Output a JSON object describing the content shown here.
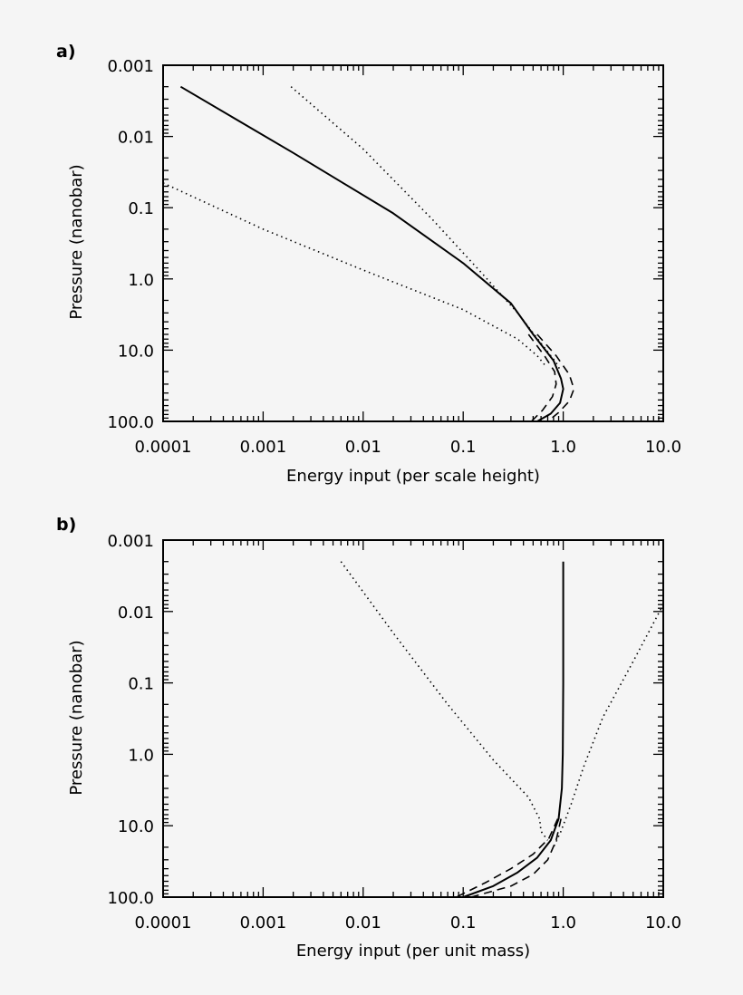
{
  "chart_data": [
    {
      "panel_label": "a)",
      "type": "line",
      "xlabel": "Energy input (per scale height)",
      "ylabel": "Pressure (nanobar)",
      "xscale": "log",
      "yscale": "log",
      "y_inverted": true,
      "xlim": [
        0.0001,
        10.0
      ],
      "ylim": [
        0.001,
        100.0
      ],
      "x_ticks": [
        "0.0001",
        "0.001",
        "0.01",
        "0.1",
        "1.0",
        "10.0"
      ],
      "y_ticks": [
        "0.001",
        "0.01",
        "0.1",
        "1.0",
        "10.0",
        "100.0"
      ],
      "series": [
        {
          "style": "solid",
          "points": [
            [
              0.00015,
              0.002
            ],
            [
              0.002,
              0.017
            ],
            [
              0.02,
              0.12
            ],
            [
              0.1,
              0.6
            ],
            [
              0.3,
              2.2
            ],
            [
              0.5,
              6
            ],
            [
              0.8,
              14
            ],
            [
              0.95,
              25
            ],
            [
              1.0,
              35
            ],
            [
              0.93,
              55
            ],
            [
              0.75,
              78
            ],
            [
              0.55,
              100
            ]
          ]
        },
        {
          "style": "dashed",
          "points": [
            [
              0.45,
              6
            ],
            [
              0.65,
              12
            ],
            [
              0.82,
              20
            ],
            [
              0.85,
              30
            ],
            [
              0.78,
              45
            ],
            [
              0.62,
              70
            ],
            [
              0.48,
              100
            ]
          ]
        },
        {
          "style": "dashed",
          "points": [
            [
              0.55,
              6
            ],
            [
              0.85,
              12
            ],
            [
              1.15,
              22
            ],
            [
              1.28,
              35
            ],
            [
              1.15,
              52
            ],
            [
              0.9,
              75
            ],
            [
              0.7,
              100
            ]
          ]
        },
        {
          "style": "dotted",
          "points": [
            [
              0.0019,
              0.002
            ],
            [
              0.01,
              0.015
            ],
            [
              0.05,
              0.15
            ],
            [
              0.15,
              0.8
            ],
            [
              0.35,
              3
            ],
            [
              0.6,
              8
            ],
            [
              0.85,
              15
            ],
            [
              0.95,
              20
            ]
          ]
        },
        {
          "style": "dotted",
          "points": [
            [
              0.0001,
              0.045
            ],
            [
              0.001,
              0.2
            ],
            [
              0.01,
              0.75
            ],
            [
              0.1,
              2.7
            ],
            [
              0.35,
              7
            ],
            [
              0.55,
              12
            ],
            [
              0.65,
              16
            ]
          ]
        }
      ]
    },
    {
      "panel_label": "b)",
      "type": "line",
      "xlabel": "Energy input (per unit mass)",
      "ylabel": "Pressure (nanobar)",
      "xscale": "log",
      "yscale": "log",
      "y_inverted": true,
      "xlim": [
        0.0001,
        10.0
      ],
      "ylim": [
        0.001,
        100.0
      ],
      "x_ticks": [
        "0.0001",
        "0.001",
        "0.01",
        "0.1",
        "1.0",
        "10.0"
      ],
      "y_ticks": [
        "0.001",
        "0.01",
        "0.1",
        "1.0",
        "10.0",
        "100.0"
      ],
      "series": [
        {
          "style": "solid",
          "points": [
            [
              1.0,
              0.002
            ],
            [
              1.0,
              0.1
            ],
            [
              0.99,
              1
            ],
            [
              0.97,
              3
            ],
            [
              0.9,
              8
            ],
            [
              0.75,
              16
            ],
            [
              0.55,
              28
            ],
            [
              0.35,
              45
            ],
            [
              0.2,
              70
            ],
            [
              0.1,
              100
            ]
          ]
        },
        {
          "style": "dashed",
          "points": [
            [
              0.88,
              8
            ],
            [
              0.72,
              15
            ],
            [
              0.5,
              25
            ],
            [
              0.3,
              40
            ],
            [
              0.17,
              62
            ],
            [
              0.085,
              100
            ]
          ]
        },
        {
          "style": "dashed",
          "points": [
            [
              0.95,
              8
            ],
            [
              0.85,
              16
            ],
            [
              0.7,
              30
            ],
            [
              0.5,
              48
            ],
            [
              0.3,
              70
            ],
            [
              0.12,
              100
            ]
          ]
        },
        {
          "style": "dotted",
          "points": [
            [
              0.006,
              0.002
            ],
            [
              0.02,
              0.02
            ],
            [
              0.07,
              0.2
            ],
            [
              0.2,
              1.2
            ],
            [
              0.45,
              4
            ],
            [
              0.58,
              8
            ],
            [
              0.6,
              12
            ],
            [
              0.7,
              16
            ]
          ]
        },
        {
          "style": "dotted",
          "points": [
            [
              10.0,
              0.008
            ],
            [
              5.0,
              0.05
            ],
            [
              2.5,
              0.3
            ],
            [
              1.6,
              1.5
            ],
            [
              1.2,
              5
            ],
            [
              0.95,
              12
            ],
            [
              0.8,
              20
            ]
          ]
        }
      ]
    }
  ]
}
